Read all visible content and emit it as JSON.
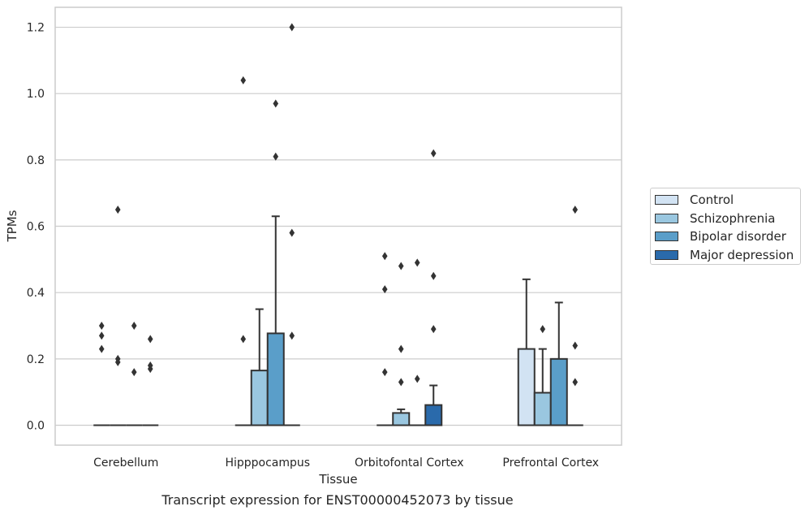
{
  "caption": "Transcript expression for ENST00000452073 by tissue",
  "chart_data": {
    "type": "bar",
    "xlabel": "Tissue",
    "ylabel": "TPMs",
    "ylim": [
      -0.06,
      1.26
    ],
    "yticks": [
      0.0,
      0.2,
      0.4,
      0.6,
      0.8,
      1.0,
      1.2
    ],
    "ytick_labels": [
      "0.0",
      "0.2",
      "0.4",
      "0.6",
      "0.8",
      "1.0",
      "1.2"
    ],
    "grid": true,
    "legend_placement": "right",
    "categories": [
      "Cerebellum",
      "Hipppocampus",
      "Orbitofontal Cortex",
      "Prefrontal Cortex"
    ],
    "series": [
      {
        "name": "Control",
        "color": "#d2e3f3",
        "values": [
          0.0,
          0.0,
          0.0,
          0.23
        ],
        "error_upper": [
          null,
          null,
          null,
          0.44
        ],
        "outliers": [
          [
            0.23,
            0.27,
            0.3
          ],
          [
            0.26,
            1.04
          ],
          [
            0.16,
            0.41,
            0.51
          ],
          []
        ]
      },
      {
        "name": "Schizophrenia",
        "color": "#9ac7e0",
        "values": [
          0.0,
          0.165,
          0.037,
          0.098
        ],
        "error_upper": [
          null,
          0.35,
          0.048,
          0.23
        ],
        "outliers": [
          [
            0.19,
            0.2,
            0.65
          ],
          [],
          [
            0.13,
            0.23,
            0.48
          ],
          [
            0.29
          ]
        ]
      },
      {
        "name": "Bipolar disorder",
        "color": "#5a9ec9",
        "values": [
          0.0,
          0.277,
          0.0,
          0.2
        ],
        "error_upper": [
          null,
          0.63,
          null,
          0.37
        ],
        "outliers": [
          [
            0.16,
            0.3
          ],
          [
            0.81,
            0.97
          ],
          [
            0.14,
            0.49
          ],
          []
        ]
      },
      {
        "name": "Major depression",
        "color": "#2a6aab",
        "values": [
          0.0,
          0.0,
          0.061,
          0.0
        ],
        "error_upper": [
          null,
          null,
          0.12,
          null
        ],
        "outliers": [
          [
            0.17,
            0.18,
            0.26
          ],
          [
            0.27,
            0.58,
            1.2
          ],
          [
            0.29,
            0.45,
            0.82
          ],
          [
            0.13,
            0.24,
            0.65
          ]
        ]
      }
    ]
  }
}
